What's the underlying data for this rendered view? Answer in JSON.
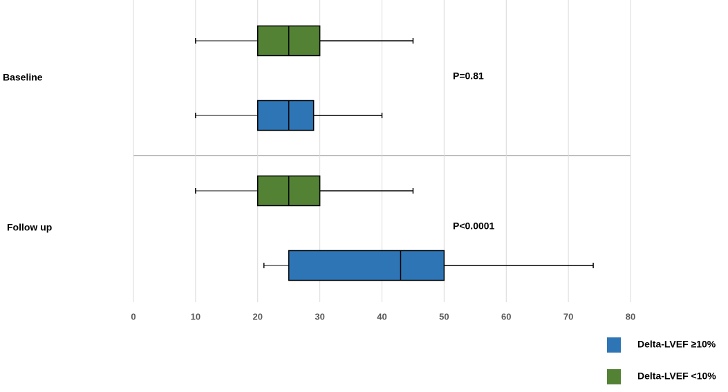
{
  "chart_data": {
    "type": "boxplot",
    "orientation": "horizontal",
    "categories": [
      "Baseline",
      "Follow up"
    ],
    "series": [
      {
        "name": "Delta-LVEF <10%",
        "color": "#548235",
        "min": [
          10,
          10
        ],
        "q1": [
          20,
          20
        ],
        "median": [
          25,
          25
        ],
        "q3": [
          30,
          30
        ],
        "max": [
          45,
          45
        ]
      },
      {
        "name": "Delta-LVEF ≥10%",
        "color": "#2e75b6",
        "min": [
          10,
          21
        ],
        "q1": [
          20,
          25
        ],
        "median": [
          25,
          43
        ],
        "q3": [
          29,
          50
        ],
        "max": [
          40,
          74
        ]
      }
    ],
    "annotations": [
      "P=0.81",
      "P<0.0001"
    ],
    "xlim": [
      0,
      80
    ],
    "xticks": [
      0,
      10,
      20,
      30,
      40,
      50,
      60,
      70,
      80
    ],
    "grid": true,
    "legend": "bottom-right"
  }
}
